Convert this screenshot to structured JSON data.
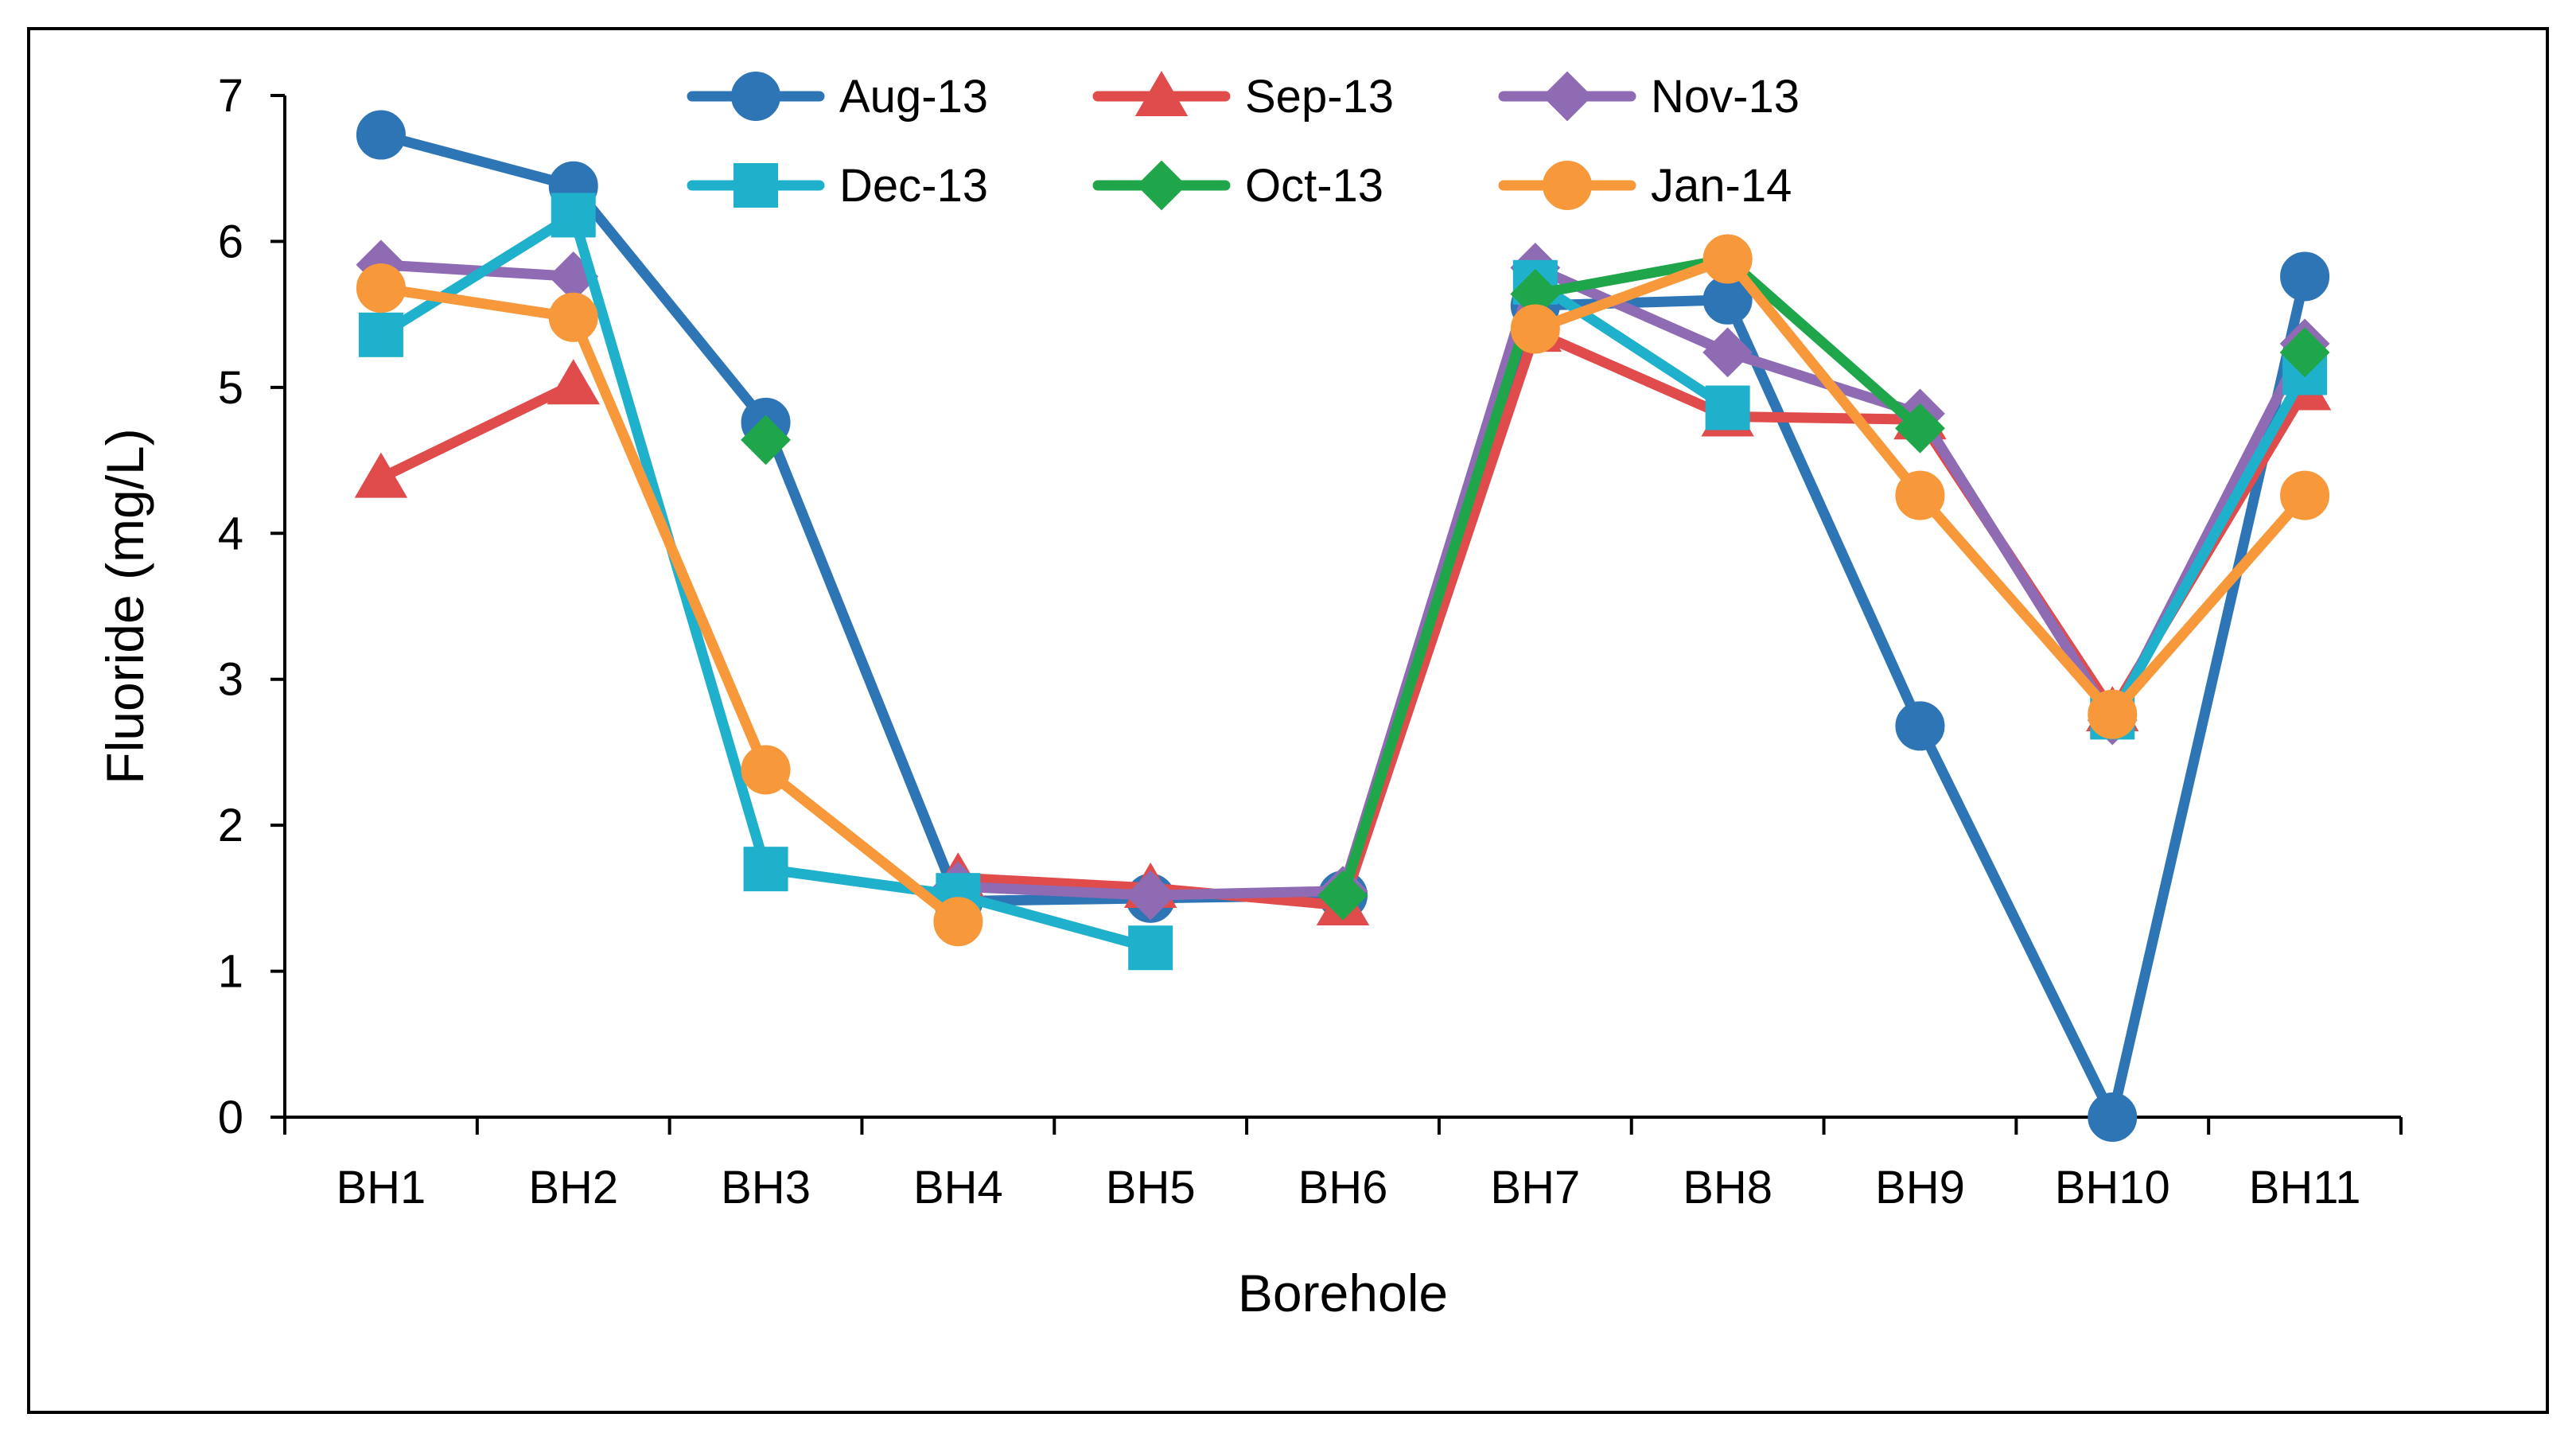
{
  "chart_data": {
    "type": "line",
    "title": "",
    "xlabel": "Borehole",
    "ylabel": "Fluoride (mg/L)",
    "ylim": [
      0,
      7
    ],
    "yticks": [
      "0",
      "1",
      "2",
      "3",
      "4",
      "5",
      "6",
      "7"
    ],
    "categories": [
      "BH1",
      "BH2",
      "BH3",
      "BH4",
      "BH5",
      "BH6",
      "BH7",
      "BH8",
      "BH9",
      "BH10",
      "BH11"
    ],
    "grid": false,
    "legend_position": "top",
    "series": [
      {
        "name": "Aug-13",
        "color": "#2E75B6",
        "marker": "circle",
        "values": [
          6.73,
          6.38,
          4.76,
          1.48,
          1.5,
          1.52,
          5.56,
          5.6,
          2.68,
          0.0,
          5.76
        ]
      },
      {
        "name": "Sep-13",
        "color": "#E04B4B",
        "marker": "triangle",
        "values": [
          4.38,
          5.02,
          null,
          1.64,
          1.57,
          1.45,
          5.38,
          4.8,
          4.78,
          2.78,
          4.98
        ]
      },
      {
        "name": "Nov-13",
        "color": "#8E6BB3",
        "marker": "diamond",
        "values": [
          5.84,
          5.76,
          null,
          1.58,
          1.52,
          1.55,
          5.82,
          5.24,
          4.82,
          2.72,
          5.3
        ]
      },
      {
        "name": "Dec-13",
        "color": "#1FB0CC",
        "marker": "square",
        "values": [
          5.36,
          6.18,
          1.7,
          1.52,
          1.16,
          null,
          5.72,
          4.86,
          null,
          2.74,
          5.1
        ]
      },
      {
        "name": "Oct-13",
        "color": "#1FA64A",
        "marker": "diamond",
        "values": [
          null,
          null,
          4.64,
          null,
          null,
          1.52,
          5.64,
          5.88,
          4.72,
          null,
          5.24
        ]
      },
      {
        "name": "Jan-14",
        "color": "#F7993A",
        "marker": "circle",
        "values": [
          5.68,
          5.48,
          2.38,
          1.34,
          null,
          null,
          5.4,
          5.88,
          4.26,
          2.76,
          4.26
        ]
      }
    ]
  }
}
